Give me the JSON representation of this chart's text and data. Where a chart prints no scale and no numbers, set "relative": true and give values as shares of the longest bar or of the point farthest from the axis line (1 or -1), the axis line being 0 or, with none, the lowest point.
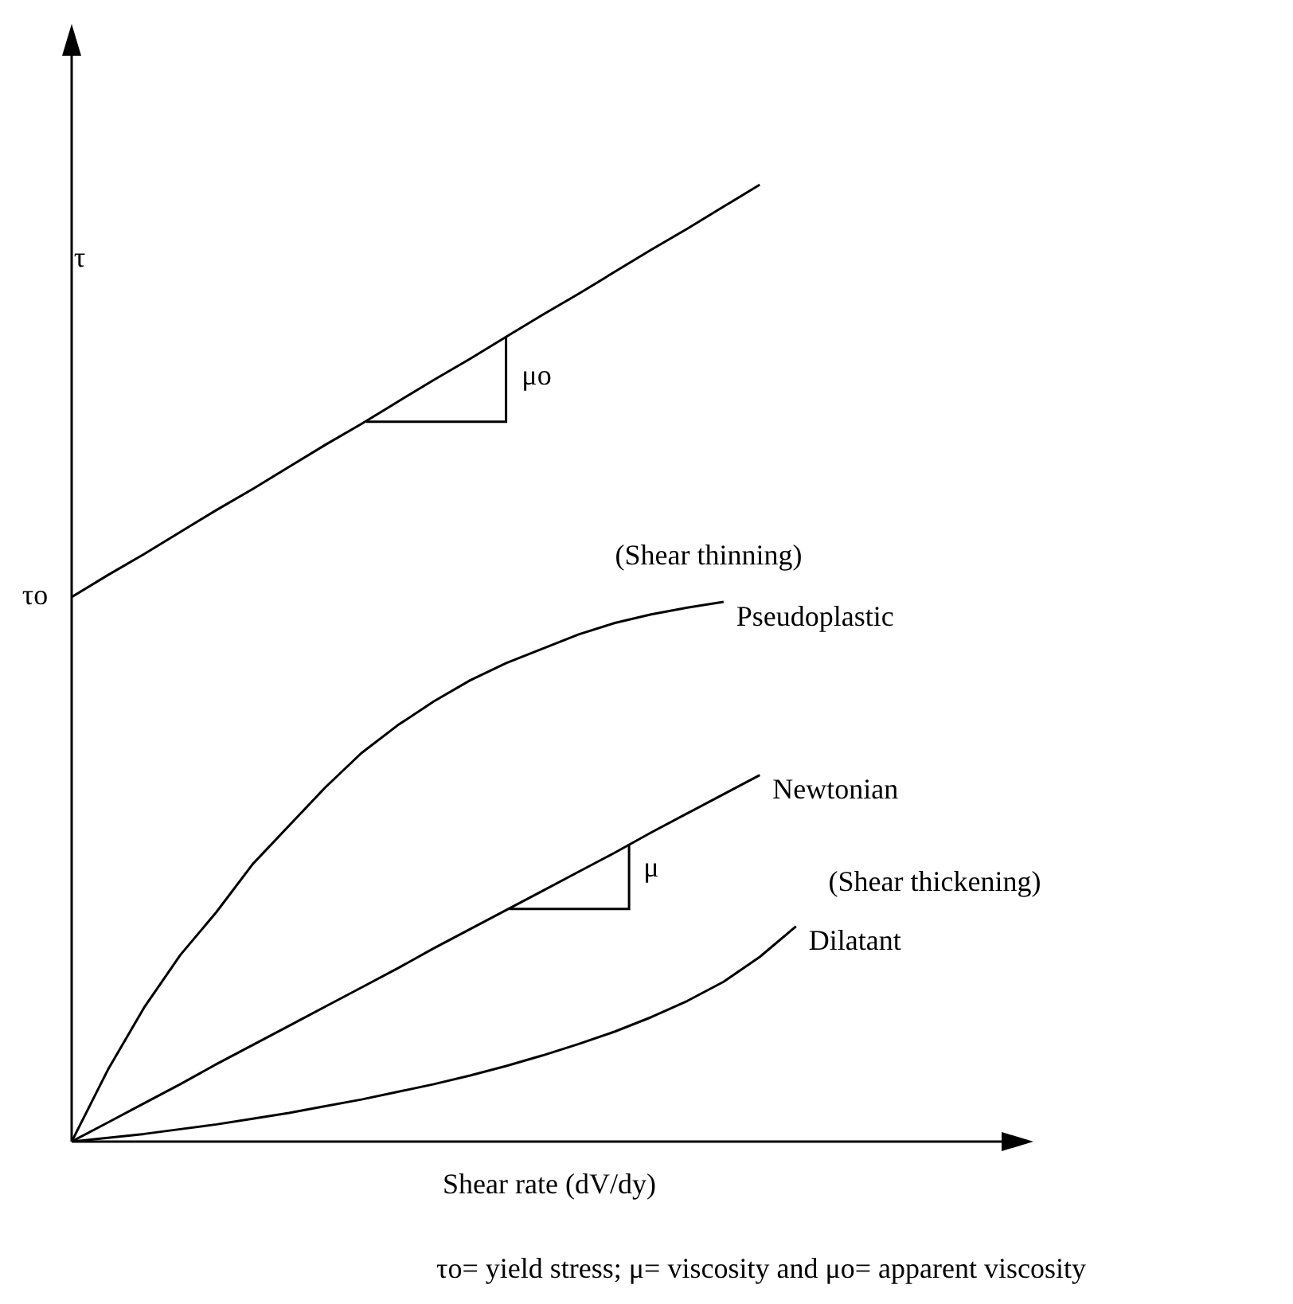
{
  "chart_data": {
    "type": "line",
    "relative": true,
    "xlabel": "Shear rate (dV/dy)",
    "ylabel": "τ",
    "marker": "none",
    "legend": false,
    "categories": [
      null,
      null,
      null,
      null,
      null,
      null,
      null,
      null,
      null,
      null,
      null,
      null,
      null,
      null,
      null,
      null,
      null,
      null,
      null,
      null,
      null
    ],
    "series": [
      {
        "color": "#000000",
        "values": [
          0.569,
          0.592,
          0.614,
          0.637,
          0.66,
          0.682,
          0.705,
          0.728,
          0.75,
          0.773,
          0.796,
          0.818,
          0.841,
          0.864,
          0.886,
          0.909,
          0.932,
          0.954,
          0.977,
          1.0,
          null
        ]
      },
      {
        "name": "Pseudoplastic",
        "color": "#000000",
        "values": [
          0,
          0.075,
          0.14,
          0.195,
          0.24,
          0.29,
          0.33,
          0.37,
          0.406,
          0.435,
          0.46,
          0.482,
          0.5,
          0.515,
          0.53,
          0.542,
          0.551,
          0.558,
          0.564,
          null,
          null
        ]
      },
      {
        "name": "Newtonian",
        "color": "#000000",
        "values": [
          0,
          0.02,
          0.04,
          0.06,
          0.081,
          0.101,
          0.121,
          0.141,
          0.161,
          0.181,
          0.202,
          0.222,
          0.242,
          0.262,
          0.282,
          0.302,
          0.323,
          0.343,
          0.363,
          0.383,
          null
        ]
      },
      {
        "name": "Dilatant",
        "color": "#000000",
        "values": [
          0,
          0.004,
          0.008,
          0.013,
          0.018,
          0.024,
          0.03,
          0.037,
          0.044,
          0.052,
          0.06,
          0.069,
          0.079,
          0.09,
          0.102,
          0.115,
          0.13,
          0.147,
          0.167,
          0.193,
          0.225
        ]
      }
    ],
    "annotations": [
      "τo",
      "μo",
      "(Shear thinning)",
      "μ",
      "(Shear thickening)",
      "τo= yield stress; μ= viscosity and μo= apparent viscosity"
    ]
  }
}
